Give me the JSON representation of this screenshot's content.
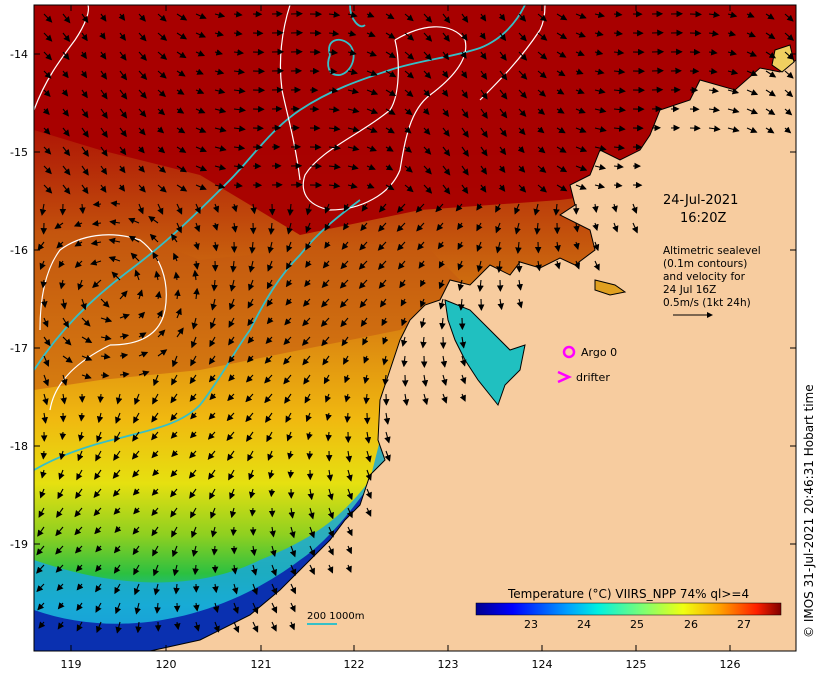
{
  "map": {
    "date": "24-Jul-2021",
    "time": "16:20Z",
    "lon_ticks": [
      "119",
      "120",
      "121",
      "122",
      "123",
      "124",
      "125",
      "126"
    ],
    "lat_ticks": [
      "-14",
      "-15",
      "-16",
      "-17",
      "-18",
      "-19"
    ],
    "annotation_lines": [
      "Altimetric sealevel",
      "(0.1m contours)",
      "and velocity for",
      "24 Jul 16Z",
      "0.5m/s (1kt 24h)"
    ],
    "argo_label": "Argo 0",
    "drifter_label": "drifter",
    "isobath_label": "200  1000m",
    "credit": "© IMOS 31-Jul-2021 20:46:31 Hobart time",
    "colors": {
      "land": "#f7cc9f",
      "argo": "#ff00ff",
      "drifter": "#ff00ff",
      "isobath": "#35c0c8",
      "sealevel_contour": "#ffffff"
    }
  },
  "colorbar": {
    "title": "Temperature (°C) VIIRS_NPP 74% ql>=4",
    "ticks": [
      "23",
      "24",
      "25",
      "26",
      "27"
    ],
    "scale": "jet"
  }
}
